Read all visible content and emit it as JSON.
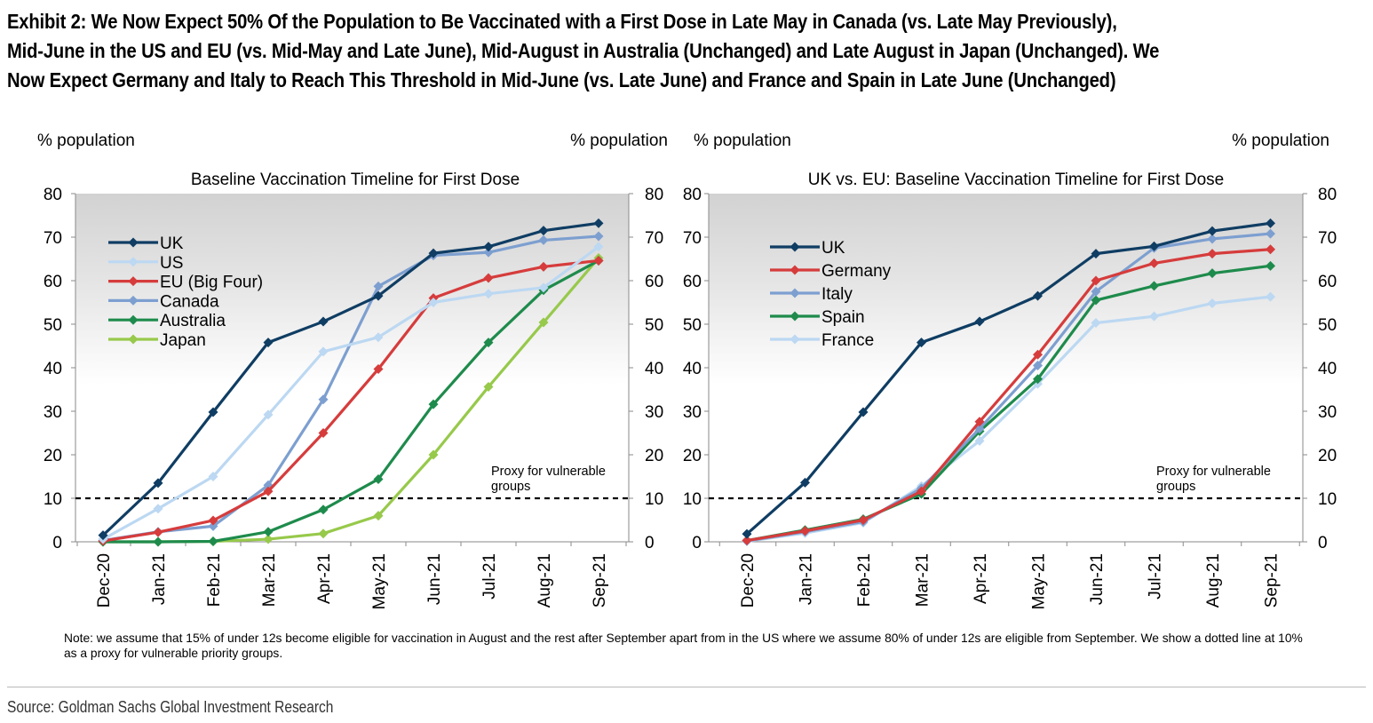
{
  "exhibit": {
    "title_lines": [
      "Exhibit 2: We Now Expect 50% Of the Population to Be Vaccinated with a First Dose in Late May in Canada (vs. Late May Previously),",
      "Mid-June in the US and EU (vs. Mid-May and Late June), Mid-August in Australia (Unchanged) and Late August in Japan (Unchanged). We",
      "Now Expect Germany and Italy to Reach This Threshold in Mid-June (vs. Late June) and France and Spain in Late June (Unchanged)"
    ],
    "note": "Note: we assume that 15% of under 12s become eligible for vaccination in August and the rest after September apart from in the US where we assume 80% of under 12s are eligible from September. We show a dotted line at 10% as a proxy for vulnerable priority groups.",
    "source": "Source: Goldman Sachs Global Investment Research"
  },
  "chart_data": [
    {
      "type": "line",
      "title": "Baseline Vaccination Timeline for First Dose",
      "ylabel_left": "% population",
      "ylabel_right": "%  population",
      "ylim": [
        0,
        80
      ],
      "yticks": [
        0,
        10,
        20,
        30,
        40,
        50,
        60,
        70,
        80
      ],
      "categories": [
        "Dec-20",
        "Jan-21",
        "Feb-21",
        "Mar-21",
        "Apr-21",
        "May-21",
        "Jun-21",
        "Jul-21",
        "Aug-21",
        "Sep-21"
      ],
      "legend_position": "top-left",
      "reference_line": {
        "y": 10,
        "style": "dashed",
        "label_lines": [
          "Proxy for vulnerable",
          "groups"
        ]
      },
      "series": [
        {
          "name": "UK",
          "color": "#0f3d63",
          "values": [
            1.5,
            13.5,
            29.8,
            45.8,
            50.6,
            56.5,
            66.3,
            67.8,
            71.5,
            73.2
          ]
        },
        {
          "name": "US",
          "color": "#bcd8f2",
          "values": [
            0.6,
            7.6,
            15.0,
            29.2,
            43.7,
            47.0,
            55.0,
            57.0,
            58.4,
            67.8
          ]
        },
        {
          "name": "EU (Big Four)",
          "color": "#d63c3c",
          "values": [
            0.2,
            2.2,
            4.9,
            11.6,
            25.0,
            39.7,
            56.0,
            60.6,
            63.2,
            64.6
          ]
        },
        {
          "name": "Canada",
          "color": "#7d9fd0",
          "values": [
            0.3,
            2.3,
            3.6,
            13.0,
            32.7,
            58.7,
            65.8,
            66.5,
            69.3,
            70.2
          ]
        },
        {
          "name": "Australia",
          "color": "#1e8b4c",
          "values": [
            0.0,
            0.0,
            0.1,
            2.3,
            7.4,
            14.4,
            31.6,
            45.8,
            57.8,
            64.6
          ]
        },
        {
          "name": "Japan",
          "color": "#97c94b",
          "values": [
            0.0,
            0.0,
            0.1,
            0.6,
            1.9,
            6.0,
            20.0,
            35.6,
            50.4,
            65.2
          ]
        }
      ]
    },
    {
      "type": "line",
      "title": "UK vs. EU: Baseline Vaccination Timeline for First Dose",
      "ylabel_left": "% population",
      "ylabel_right": "% population",
      "ylim": [
        0,
        80
      ],
      "yticks": [
        0,
        10,
        20,
        30,
        40,
        50,
        60,
        70,
        80
      ],
      "categories": [
        "Dec-20",
        "Jan-21",
        "Feb-21",
        "Mar-21",
        "Apr-21",
        "May-21",
        "Jun-21",
        "Jul-21",
        "Aug-21",
        "Sep-21"
      ],
      "legend_position": "top-left",
      "reference_line": {
        "y": 10,
        "style": "dashed",
        "label_lines": [
          "Proxy for vulnerable",
          "groups"
        ]
      },
      "series": [
        {
          "name": "UK",
          "color": "#0f3d63",
          "values": [
            1.8,
            13.6,
            29.8,
            45.8,
            50.6,
            56.5,
            66.2,
            67.9,
            71.4,
            73.2
          ]
        },
        {
          "name": "Germany",
          "color": "#d63c3c",
          "values": [
            0.3,
            2.5,
            5.0,
            11.6,
            27.6,
            43.0,
            60.0,
            64.0,
            66.2,
            67.2
          ]
        },
        {
          "name": "Italy",
          "color": "#7d9fd0",
          "values": [
            0.2,
            2.3,
            4.6,
            12.3,
            26.0,
            40.5,
            57.5,
            67.5,
            69.6,
            70.8
          ]
        },
        {
          "name": "Spain",
          "color": "#1e8b4c",
          "values": [
            0.3,
            2.7,
            5.2,
            11.0,
            25.4,
            37.4,
            55.5,
            58.8,
            61.7,
            63.4
          ]
        },
        {
          "name": "France",
          "color": "#bcd8f2",
          "values": [
            0.1,
            2.0,
            4.4,
            12.8,
            23.2,
            36.3,
            50.3,
            51.8,
            54.8,
            56.3
          ]
        }
      ]
    }
  ]
}
